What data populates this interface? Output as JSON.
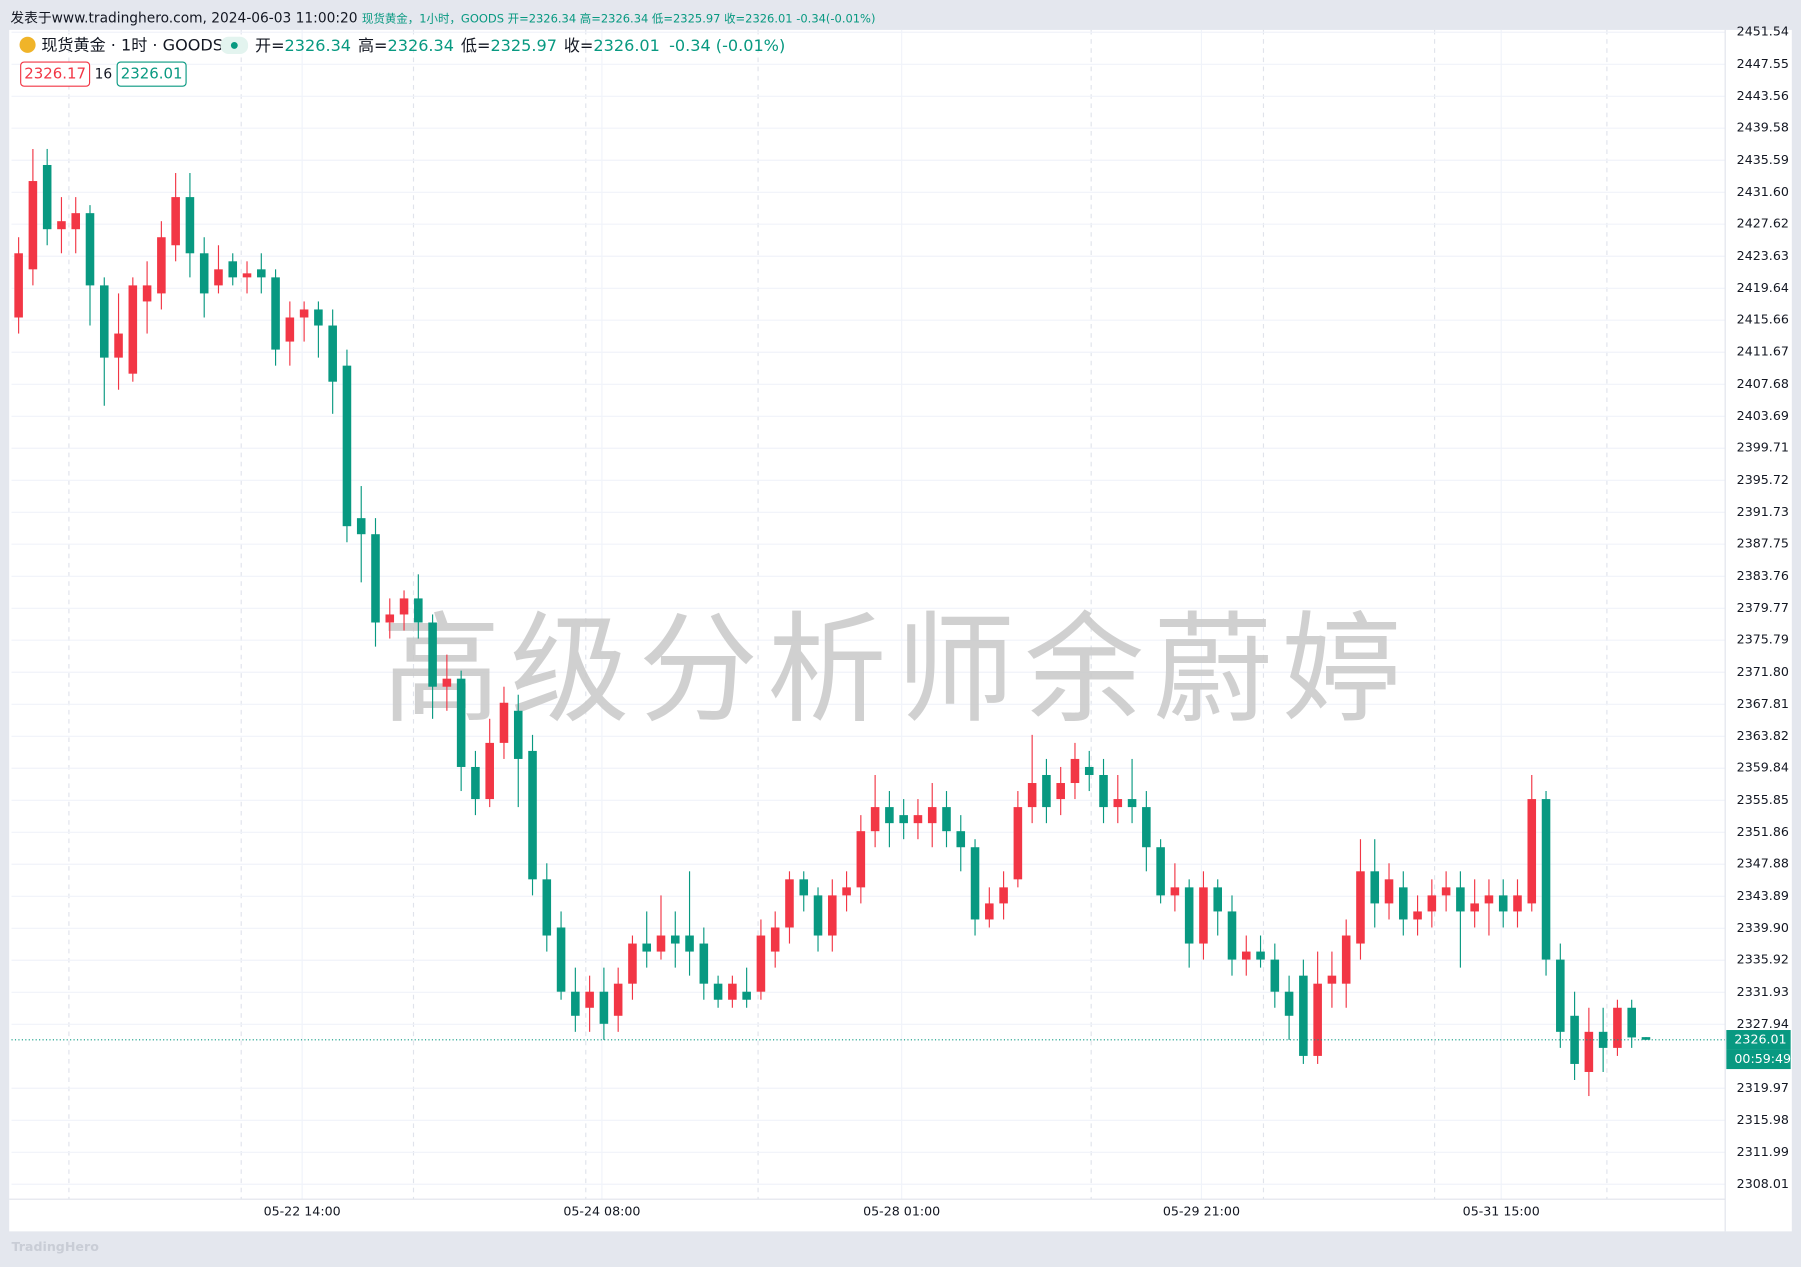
{
  "banner": {
    "prefix": "发表于www.tradinghero.com, 2024-06-03 11:00:20",
    "detail": "现货黄金，1小时，GOODS 开=2326.34 高=2326.34 低=2325.97 收=2326.01 -0.34(-0.01%)"
  },
  "legend": {
    "symbol": "现货黄金 · 1时 · GOODS",
    "open_label": "开=",
    "high_label": "高=",
    "low_label": "低=",
    "close_label": "收=",
    "change": "-0.34 (-0.01%)"
  },
  "quote": {
    "sell": "2326.17",
    "spread": "16",
    "buy": "2326.01"
  },
  "countdown": "00:59:49",
  "watermark": "高级分析师余蔚婷",
  "footer": "TradingHero",
  "chart_data": {
    "type": "candlestick",
    "up_color": "#f23645",
    "down_color": "#089981",
    "grid": true,
    "ylim": [
      2306.15,
      2451.83
    ],
    "xlim": [
      0,
      120.05
    ],
    "yticks": [
      2451.54,
      2447.55,
      2443.56,
      2439.58,
      2435.59,
      {
        "value": 2431.6,
        "label": "2431.60"
      },
      2427.62,
      2423.63,
      2419.64,
      2415.66,
      2411.67,
      2407.68,
      2403.69,
      2399.71,
      2395.72,
      2391.73,
      2387.75,
      2383.76,
      2379.77,
      2375.79,
      {
        "value": 2371.8,
        "label": "2371.80"
      },
      2367.81,
      2363.82,
      2359.84,
      2355.85,
      2351.86,
      2347.88,
      2343.89,
      {
        "value": 2339.9,
        "label": "2339.90"
      },
      2335.92,
      2331.93,
      2327.94,
      2319.97,
      2315.98,
      2311.99,
      2308.01
    ],
    "xticks": [
      {
        "value": 20.36,
        "label": "05-22 14:00"
      },
      {
        "value": 41.36,
        "label": "05-24 08:00"
      },
      {
        "value": 62.36,
        "label": "05-28 01:00"
      },
      {
        "value": 83.36,
        "label": "05-29 21:00"
      },
      {
        "value": 104.36,
        "label": "05-31 15:00"
      }
    ],
    "open": [
      2416,
      2422,
      2435,
      2427,
      2427,
      2429,
      2420,
      2411,
      2409,
      2418,
      2419,
      2425,
      2431,
      2424,
      2420,
      2423,
      2421,
      2422,
      2421,
      2413,
      2416,
      2417,
      2415,
      2410,
      2391,
      2389,
      2378,
      2379,
      2381,
      2378,
      2370,
      2371,
      2360,
      2356,
      2363,
      2367,
      2362,
      2346,
      2340,
      2332,
      2330,
      2332,
      2329,
      2333,
      2338,
      2337,
      2339,
      2339,
      2338,
      2333,
      2331,
      2332,
      2332,
      2337,
      2340,
      2346,
      2344,
      2339,
      2344,
      2345,
      2352,
      2355,
      2354,
      2353,
      2353,
      2355,
      2352,
      2350,
      2341,
      2343,
      2346,
      2355,
      2359,
      2356,
      2358,
      2360,
      2359,
      2355,
      2356,
      2355,
      2350,
      2344,
      2345,
      2338,
      2345,
      2342,
      2336,
      2337,
      2336,
      2332,
      2334,
      2324,
      2333,
      2333,
      2338,
      2347,
      2343,
      2345,
      2341,
      2342,
      2344,
      2345,
      2342,
      2343,
      2344,
      2342,
      2343,
      2356,
      2336,
      2329,
      2322,
      2327,
      2325,
      2330,
      2326.34
    ],
    "high": [
      2426,
      2437,
      2437,
      2431,
      2431,
      2430,
      2421,
      2419,
      2421,
      2423,
      2428,
      2434,
      2434,
      2426,
      2425,
      2424,
      2423,
      2424,
      2422,
      2418,
      2418,
      2418,
      2417,
      2412,
      2395,
      2391,
      2381,
      2382,
      2384,
      2379,
      2374,
      2372,
      2362,
      2366,
      2370,
      2369,
      2364,
      2348,
      2342,
      2335,
      2334,
      2335,
      2335,
      2339,
      2342,
      2344,
      2342,
      2347,
      2340,
      2334,
      2334,
      2335,
      2341,
      2342,
      2347,
      2347,
      2345,
      2346,
      2347,
      2354,
      2359,
      2357,
      2356,
      2356,
      2358,
      2357,
      2354,
      2351,
      2345,
      2347,
      2357,
      2364,
      2361,
      2360,
      2363,
      2362,
      2361,
      2359,
      2361,
      2357,
      2351,
      2348,
      2346,
      2347,
      2346,
      2344,
      2339,
      2339,
      2338,
      2334,
      2336,
      2337,
      2337,
      2341,
      2351,
      2351,
      2348,
      2347,
      2344,
      2346,
      2347,
      2347,
      2346,
      2346,
      2346,
      2346,
      2359,
      2357,
      2338,
      2332,
      2330,
      2330,
      2331,
      2331,
      2326.34
    ],
    "low": [
      2414,
      2420,
      2425,
      2424,
      2424,
      2415,
      2405,
      2407,
      2408,
      2414,
      2417,
      2423,
      2421,
      2416,
      2419,
      2420,
      2419,
      2419,
      2410,
      2410,
      2413,
      2411,
      2404,
      2388,
      2383,
      2375,
      2376,
      2377,
      2376,
      2366,
      2367,
      2357,
      2354,
      2355,
      2361,
      2355,
      2344,
      2337,
      2331,
      2327,
      2327,
      2326,
      2327,
      2331,
      2335,
      2336,
      2335,
      2334,
      2331,
      2330,
      2330,
      2330,
      2331,
      2335,
      2338,
      2342,
      2337,
      2337,
      2342,
      2343,
      2350,
      2350,
      2351,
      2351,
      2350,
      2350,
      2347,
      2339,
      2340,
      2341,
      2345,
      2353,
      2353,
      2354,
      2356,
      2357,
      2353,
      2353,
      2353,
      2347,
      2343,
      2342,
      2335,
      2336,
      2339,
      2334,
      2334,
      2335,
      2330,
      2326,
      2323,
      2323,
      2330,
      2330,
      2336,
      2340,
      2341,
      2339,
      2339,
      2340,
      2342,
      2335,
      2340,
      2339,
      2340,
      2340,
      2342,
      2334,
      2325,
      2321,
      2319,
      2322,
      2324,
      2325,
      2325.97
    ],
    "close": [
      2424,
      2433,
      2427,
      2428,
      2429,
      2420,
      2411,
      2414,
      2420,
      2420,
      2426,
      2431,
      2424,
      2419,
      2422,
      2421,
      2421.5,
      2421,
      2412,
      2416,
      2417,
      2415,
      2408,
      2390,
      2389,
      2378,
      2379,
      2381,
      2378,
      2370,
      2371,
      2360,
      2356,
      2363,
      2368,
      2361,
      2346,
      2339,
      2332,
      2329,
      2332,
      2328,
      2333,
      2338,
      2337,
      2339,
      2338,
      2337,
      2333,
      2331,
      2333,
      2331,
      2339,
      2340,
      2346,
      2344,
      2339,
      2344,
      2345,
      2352,
      2355,
      2353,
      2353,
      2354,
      2355,
      2352,
      2350,
      2341,
      2343,
      2345,
      2355,
      2358,
      2355,
      2358,
      2361,
      2359,
      2355,
      2356,
      2355,
      2350,
      2344,
      2345,
      2338,
      2345,
      2342,
      2336,
      2337,
      2336,
      2332,
      2329,
      2324,
      2333,
      2334,
      2339,
      2347,
      2343,
      2346,
      2341,
      2342,
      2344,
      2345,
      2342,
      2343,
      2344,
      2342,
      2344,
      2356,
      2336,
      2327,
      2323,
      2327,
      2325,
      2330,
      2326.3,
      2326.01
    ]
  }
}
